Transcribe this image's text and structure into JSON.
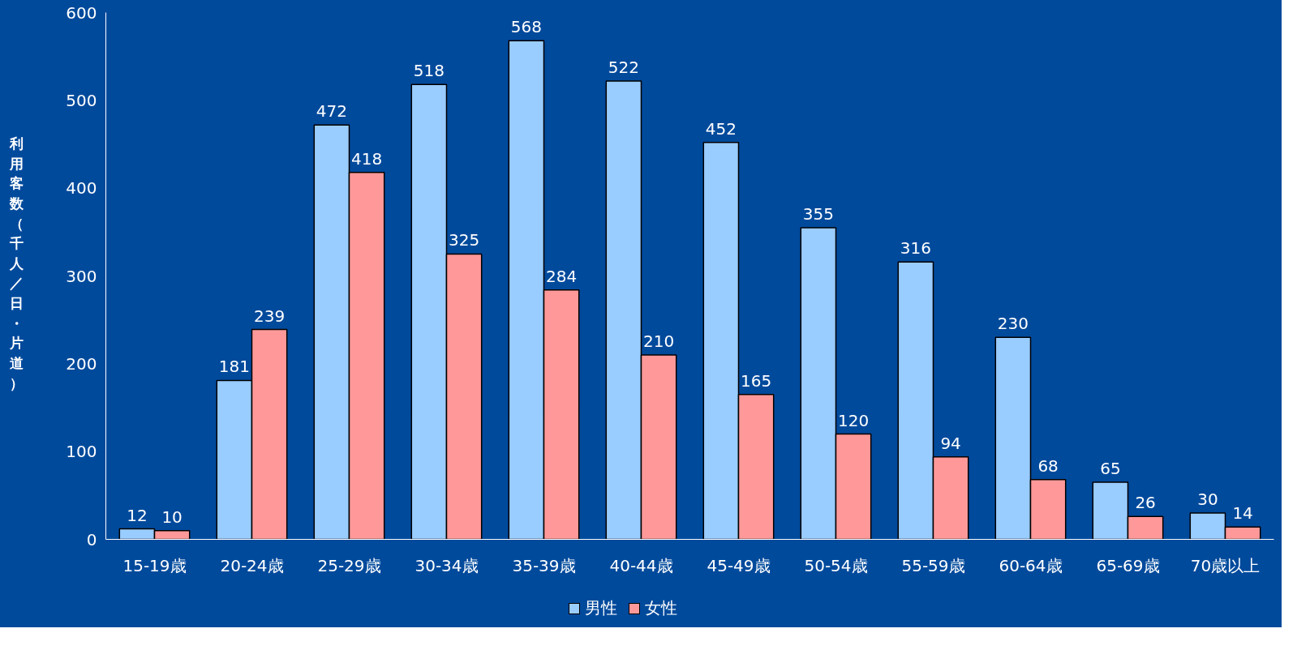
{
  "chart_data": {
    "type": "bar",
    "ylabel": "利用客数（千人／日・片道）",
    "categories": [
      "15-19歳",
      "20-24歳",
      "25-29歳",
      "30-34歳",
      "35-39歳",
      "40-44歳",
      "45-49歳",
      "50-54歳",
      "55-59歳",
      "60-64歳",
      "65-69歳",
      "70歳以上"
    ],
    "series": [
      {
        "name": "男性",
        "color": "#99ccff",
        "values": [
          12,
          181,
          472,
          518,
          568,
          522,
          452,
          355,
          316,
          230,
          65,
          30
        ]
      },
      {
        "name": "女性",
        "color": "#ff9999",
        "values": [
          10,
          239,
          418,
          325,
          284,
          210,
          165,
          120,
          94,
          68,
          26,
          14
        ]
      }
    ],
    "ylim": [
      0,
      600
    ],
    "yticks": [
      0,
      100,
      200,
      300,
      400,
      500,
      600
    ],
    "grid": false,
    "legend": "bottom",
    "data_labels": true
  }
}
